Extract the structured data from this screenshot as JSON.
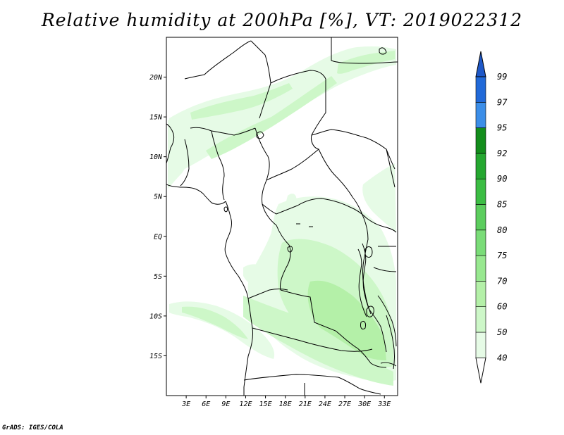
{
  "title": "Relative humidity at 200hPa [%], VT: 2019022312",
  "credit": "GrADS: IGES/COLA",
  "chart_data": {
    "type": "heatmap",
    "variable": "Relative humidity at 200hPa",
    "unit": "%",
    "valid_time": "2019022312",
    "lon_range": [
      0,
      35
    ],
    "lat_range": [
      -20,
      25
    ],
    "x_ticks": [
      "3E",
      "6E",
      "9E",
      "12E",
      "15E",
      "18E",
      "21E",
      "24E",
      "27E",
      "30E",
      "33E"
    ],
    "x_tick_values": [
      3,
      6,
      9,
      12,
      15,
      18,
      21,
      24,
      27,
      30,
      33
    ],
    "y_ticks": [
      "20N",
      "15N",
      "10N",
      "5N",
      "EQ",
      "5S",
      "10S",
      "15S"
    ],
    "y_tick_values": [
      20,
      15,
      10,
      5,
      0,
      -5,
      -10,
      -15
    ],
    "colorbar": {
      "levels": [
        "40",
        "50",
        "60",
        "70",
        "75",
        "80",
        "85",
        "90",
        "92",
        "95",
        "97",
        "99"
      ],
      "colors": [
        "#ffffff",
        "#e6fbe6",
        "#cdf7c8",
        "#b4f0a8",
        "#98e890",
        "#7adc78",
        "#5ccd5e",
        "#3cbd44",
        "#25a730",
        "#138d1c",
        "#3c8ee8",
        "#2169d8",
        "#1e58c8"
      ]
    }
  }
}
